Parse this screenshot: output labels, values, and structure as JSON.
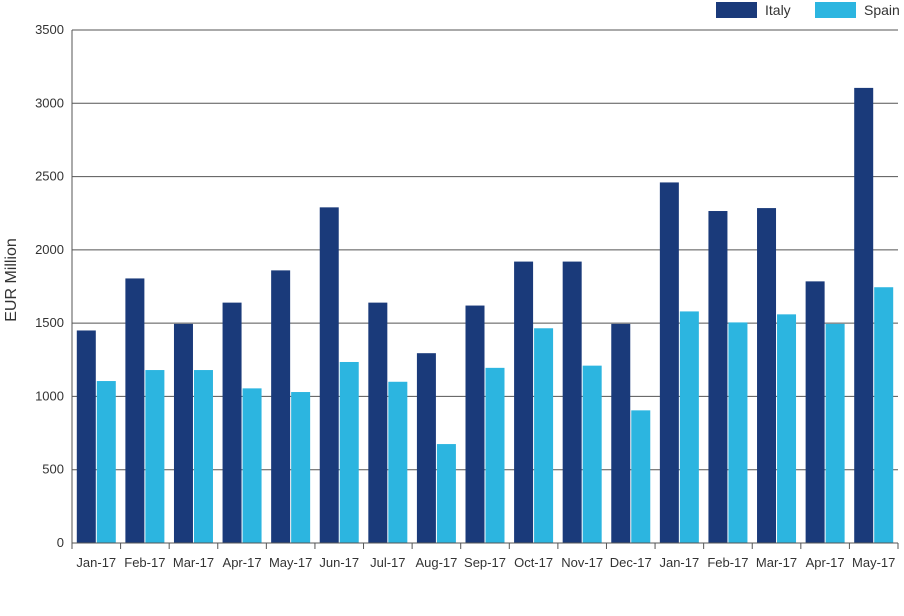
{
  "chart_data": {
    "type": "bar",
    "title": "",
    "xlabel": "",
    "ylabel": "EUR Million",
    "ylim": [
      0,
      3500
    ],
    "yticks": [
      0,
      500,
      1000,
      1500,
      2000,
      2500,
      3000,
      3500
    ],
    "grid": true,
    "legend_position": "top-right",
    "categories": [
      "Jan-17",
      "Feb-17",
      "Mar-17",
      "Apr-17",
      "May-17",
      "Jun-17",
      "Jul-17",
      "Aug-17",
      "Sep-17",
      "Oct-17",
      "Nov-17",
      "Dec-17",
      "Jan-17",
      "Feb-17",
      "Mar-17",
      "Apr-17",
      "May-17"
    ],
    "series": [
      {
        "name": "Italy",
        "color": "#1a3a7a",
        "values": [
          1450,
          1805,
          1495,
          1640,
          1860,
          2290,
          1640,
          1295,
          1620,
          1920,
          1920,
          1495,
          2460,
          2265,
          2285,
          1785,
          3105
        ]
      },
      {
        "name": "Spain",
        "color": "#2cb5e0",
        "values": [
          1105,
          1180,
          1180,
          1055,
          1030,
          1235,
          1100,
          675,
          1195,
          1465,
          1210,
          905,
          1580,
          1505,
          1560,
          1495,
          1745
        ]
      }
    ]
  }
}
